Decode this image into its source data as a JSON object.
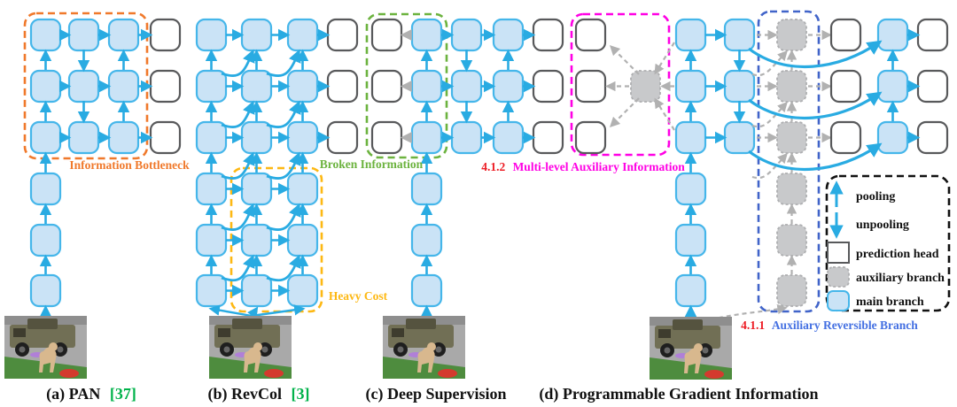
{
  "figure": {
    "captions": [
      {
        "label": "(a) PAN",
        "ref": "[37]"
      },
      {
        "label": "(b) RevCol",
        "ref": "[3]"
      },
      {
        "label": "(c) Deep Supervision",
        "ref": ""
      },
      {
        "label": "(d) Programmable Gradient Information",
        "ref": ""
      }
    ],
    "annotations": {
      "information_bottleneck": "Information Bottleneck",
      "broken_information": "Broken Information",
      "heavy_cost": "Heavy Cost",
      "multi_level_num": "4.1.2",
      "multi_level_text": "Multi-level Auxiliary Information",
      "aux_reversible_num": "4.1.1",
      "aux_reversible_text": "Auxiliary Reversible Branch"
    },
    "legend": {
      "items": [
        {
          "icon": "pooling-up-arrow-icon",
          "label": "pooling"
        },
        {
          "icon": "unpooling-down-arrow-icon",
          "label": "unpooling"
        },
        {
          "icon": "prediction-head-box-icon",
          "label": "prediction head"
        },
        {
          "icon": "auxiliary-branch-box-icon",
          "label": "auxiliary branch"
        },
        {
          "icon": "main-branch-box-icon",
          "label": "main branch"
        }
      ]
    },
    "colors": {
      "main_branch_fill": "#CAE3F6",
      "main_branch_stroke": "#45B6EA",
      "arrow_blue": "#29ABE2",
      "head_stroke": "#58595B",
      "aux_fill": "#C8C9CB",
      "aux_stroke": "#AEAFB1",
      "gray_arrow": "#B1B1B1",
      "orange": "#F0792B",
      "yellow": "#FDB813",
      "green": "#6CB33F",
      "magenta": "#FF00E4",
      "blue_dash": "#4164C9",
      "red": "#ED1C24",
      "ref_green": "#00B24A",
      "aux_label_blue": "#4470E2"
    }
  }
}
